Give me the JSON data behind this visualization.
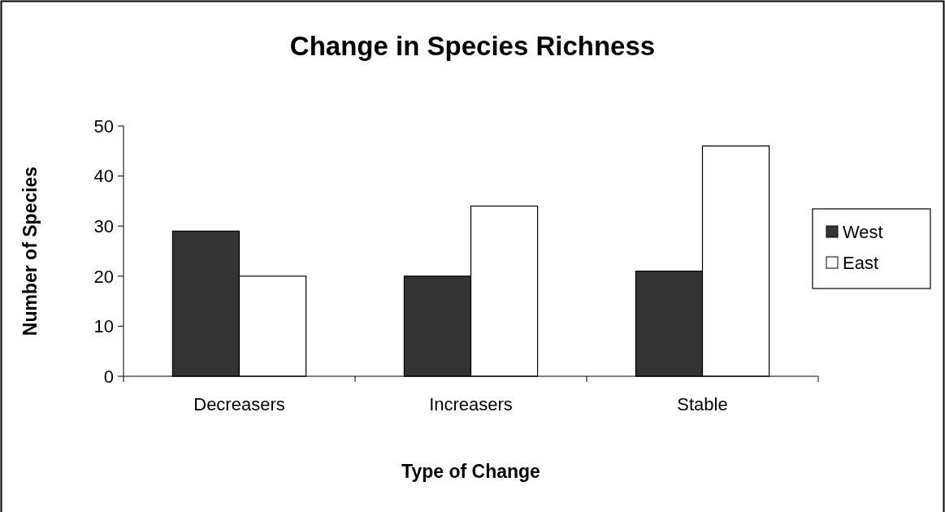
{
  "chart_data": {
    "type": "bar",
    "title": "Change in Species Richness",
    "xlabel": "Type of Change",
    "ylabel": "Number of Species",
    "categories": [
      "Decreasers",
      "Increasers",
      "Stable"
    ],
    "series": [
      {
        "name": "West",
        "color": "#333333",
        "values": [
          29,
          20,
          21
        ]
      },
      {
        "name": "East",
        "color": "#ffffff",
        "values": [
          20,
          34,
          46
        ]
      }
    ],
    "ylim": [
      0,
      50
    ],
    "yticks": [
      0,
      10,
      20,
      30,
      40,
      50
    ],
    "grid": false,
    "legend": "right"
  }
}
